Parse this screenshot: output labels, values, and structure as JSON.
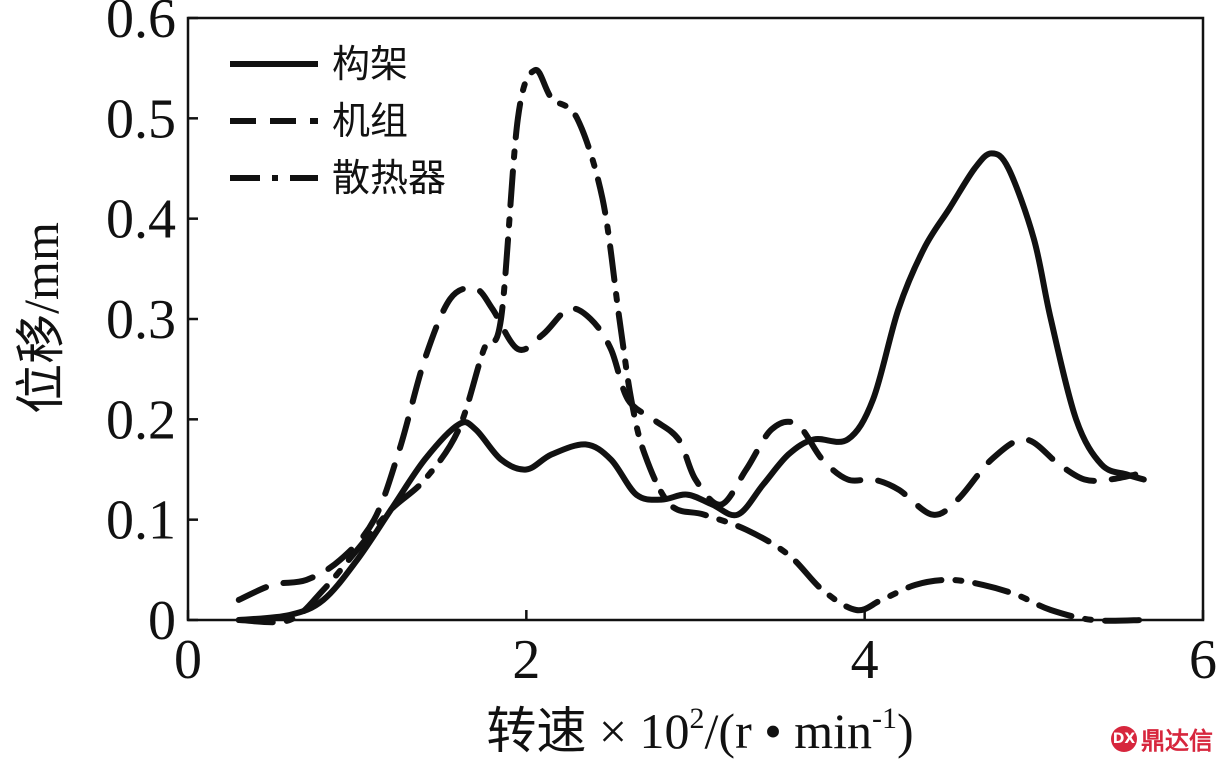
{
  "chart_data": {
    "type": "line",
    "xlabel_prefix": "转速 × 10",
    "xlabel_sup": "2",
    "xlabel_mid": "/(r • min",
    "xlabel_sup2": "-1",
    "xlabel_suffix": ")",
    "ylabel": "位移/mm",
    "xlim": [
      0,
      6
    ],
    "ylim": [
      0,
      0.6
    ],
    "x_ticks": [
      "0",
      "2",
      "4",
      "6"
    ],
    "y_ticks": [
      "0",
      "0.1",
      "0.2",
      "0.3",
      "0.4",
      "0.5",
      "0.6"
    ],
    "grid": false,
    "legend_position": "top-left",
    "series": [
      {
        "name": "构架",
        "style": "solid",
        "points": [
          [
            0.3,
            0.0
          ],
          [
            0.6,
            0.005
          ],
          [
            0.8,
            0.02
          ],
          [
            1.0,
            0.06
          ],
          [
            1.2,
            0.11
          ],
          [
            1.4,
            0.16
          ],
          [
            1.6,
            0.195
          ],
          [
            1.7,
            0.19
          ],
          [
            1.85,
            0.16
          ],
          [
            2.0,
            0.15
          ],
          [
            2.15,
            0.165
          ],
          [
            2.35,
            0.175
          ],
          [
            2.5,
            0.16
          ],
          [
            2.65,
            0.125
          ],
          [
            2.8,
            0.12
          ],
          [
            2.95,
            0.125
          ],
          [
            3.1,
            0.115
          ],
          [
            3.25,
            0.105
          ],
          [
            3.4,
            0.135
          ],
          [
            3.55,
            0.165
          ],
          [
            3.7,
            0.18
          ],
          [
            3.9,
            0.18
          ],
          [
            4.05,
            0.22
          ],
          [
            4.2,
            0.31
          ],
          [
            4.35,
            0.37
          ],
          [
            4.5,
            0.41
          ],
          [
            4.65,
            0.45
          ],
          [
            4.75,
            0.465
          ],
          [
            4.85,
            0.45
          ],
          [
            5.0,
            0.38
          ],
          [
            5.1,
            0.3
          ],
          [
            5.25,
            0.2
          ],
          [
            5.4,
            0.155
          ],
          [
            5.55,
            0.145
          ],
          [
            5.65,
            0.14
          ]
        ]
      },
      {
        "name": "机组",
        "style": "dashed",
        "points": [
          [
            0.3,
            0.02
          ],
          [
            0.5,
            0.035
          ],
          [
            0.7,
            0.04
          ],
          [
            0.9,
            0.06
          ],
          [
            1.1,
            0.1
          ],
          [
            1.25,
            0.17
          ],
          [
            1.4,
            0.26
          ],
          [
            1.55,
            0.32
          ],
          [
            1.7,
            0.33
          ],
          [
            1.8,
            0.31
          ],
          [
            1.95,
            0.27
          ],
          [
            2.1,
            0.285
          ],
          [
            2.25,
            0.31
          ],
          [
            2.38,
            0.3
          ],
          [
            2.5,
            0.27
          ],
          [
            2.6,
            0.22
          ],
          [
            2.75,
            0.2
          ],
          [
            2.9,
            0.18
          ],
          [
            3.0,
            0.14
          ],
          [
            3.15,
            0.115
          ],
          [
            3.3,
            0.15
          ],
          [
            3.45,
            0.19
          ],
          [
            3.6,
            0.195
          ],
          [
            3.75,
            0.16
          ],
          [
            3.9,
            0.14
          ],
          [
            4.05,
            0.14
          ],
          [
            4.2,
            0.13
          ],
          [
            4.4,
            0.105
          ],
          [
            4.55,
            0.12
          ],
          [
            4.75,
            0.16
          ],
          [
            4.95,
            0.18
          ],
          [
            5.15,
            0.155
          ],
          [
            5.3,
            0.14
          ],
          [
            5.45,
            0.14
          ],
          [
            5.6,
            0.145
          ]
        ]
      },
      {
        "name": "散热器",
        "style": "dashdot",
        "points": [
          [
            0.3,
            0.0
          ],
          [
            0.6,
            0.0
          ],
          [
            0.8,
            0.03
          ],
          [
            1.0,
            0.07
          ],
          [
            1.2,
            0.11
          ],
          [
            1.4,
            0.14
          ],
          [
            1.6,
            0.19
          ],
          [
            1.75,
            0.27
          ],
          [
            1.85,
            0.3
          ],
          [
            1.95,
            0.5
          ],
          [
            2.05,
            0.548
          ],
          [
            2.15,
            0.52
          ],
          [
            2.3,
            0.5
          ],
          [
            2.45,
            0.42
          ],
          [
            2.55,
            0.3
          ],
          [
            2.62,
            0.22
          ],
          [
            2.7,
            0.165
          ],
          [
            2.85,
            0.115
          ],
          [
            3.05,
            0.105
          ],
          [
            3.3,
            0.09
          ],
          [
            3.55,
            0.065
          ],
          [
            3.75,
            0.03
          ],
          [
            3.95,
            0.01
          ],
          [
            4.1,
            0.02
          ],
          [
            4.3,
            0.035
          ],
          [
            4.5,
            0.04
          ],
          [
            4.7,
            0.035
          ],
          [
            4.9,
            0.025
          ],
          [
            5.1,
            0.01
          ],
          [
            5.35,
            0.0
          ],
          [
            5.65,
            0.0
          ]
        ]
      }
    ]
  },
  "watermark": {
    "logo_text": "DX",
    "text": "鼎达信"
  }
}
